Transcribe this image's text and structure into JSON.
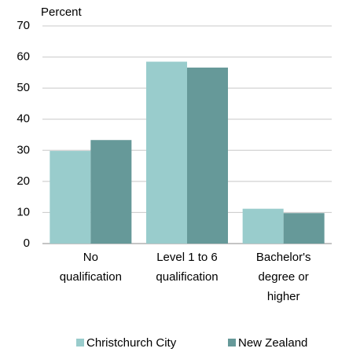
{
  "chart_data": {
    "type": "bar",
    "y_label": "Percent",
    "categories": [
      [
        "No",
        "qualification"
      ],
      [
        "Level 1 to 6",
        "qualification"
      ],
      [
        "Bachelor's",
        "degree or",
        "higher"
      ]
    ],
    "series": [
      {
        "name": "Christchurch City",
        "color": "#99cccc",
        "values": [
          29.8,
          58.5,
          11.2
        ]
      },
      {
        "name": "New Zealand",
        "color": "#669999",
        "values": [
          33.3,
          56.6,
          9.8
        ]
      }
    ],
    "ylim": [
      0,
      70
    ],
    "yticks": [
      0,
      10,
      20,
      30,
      40,
      50,
      60,
      70
    ],
    "grid": true
  }
}
